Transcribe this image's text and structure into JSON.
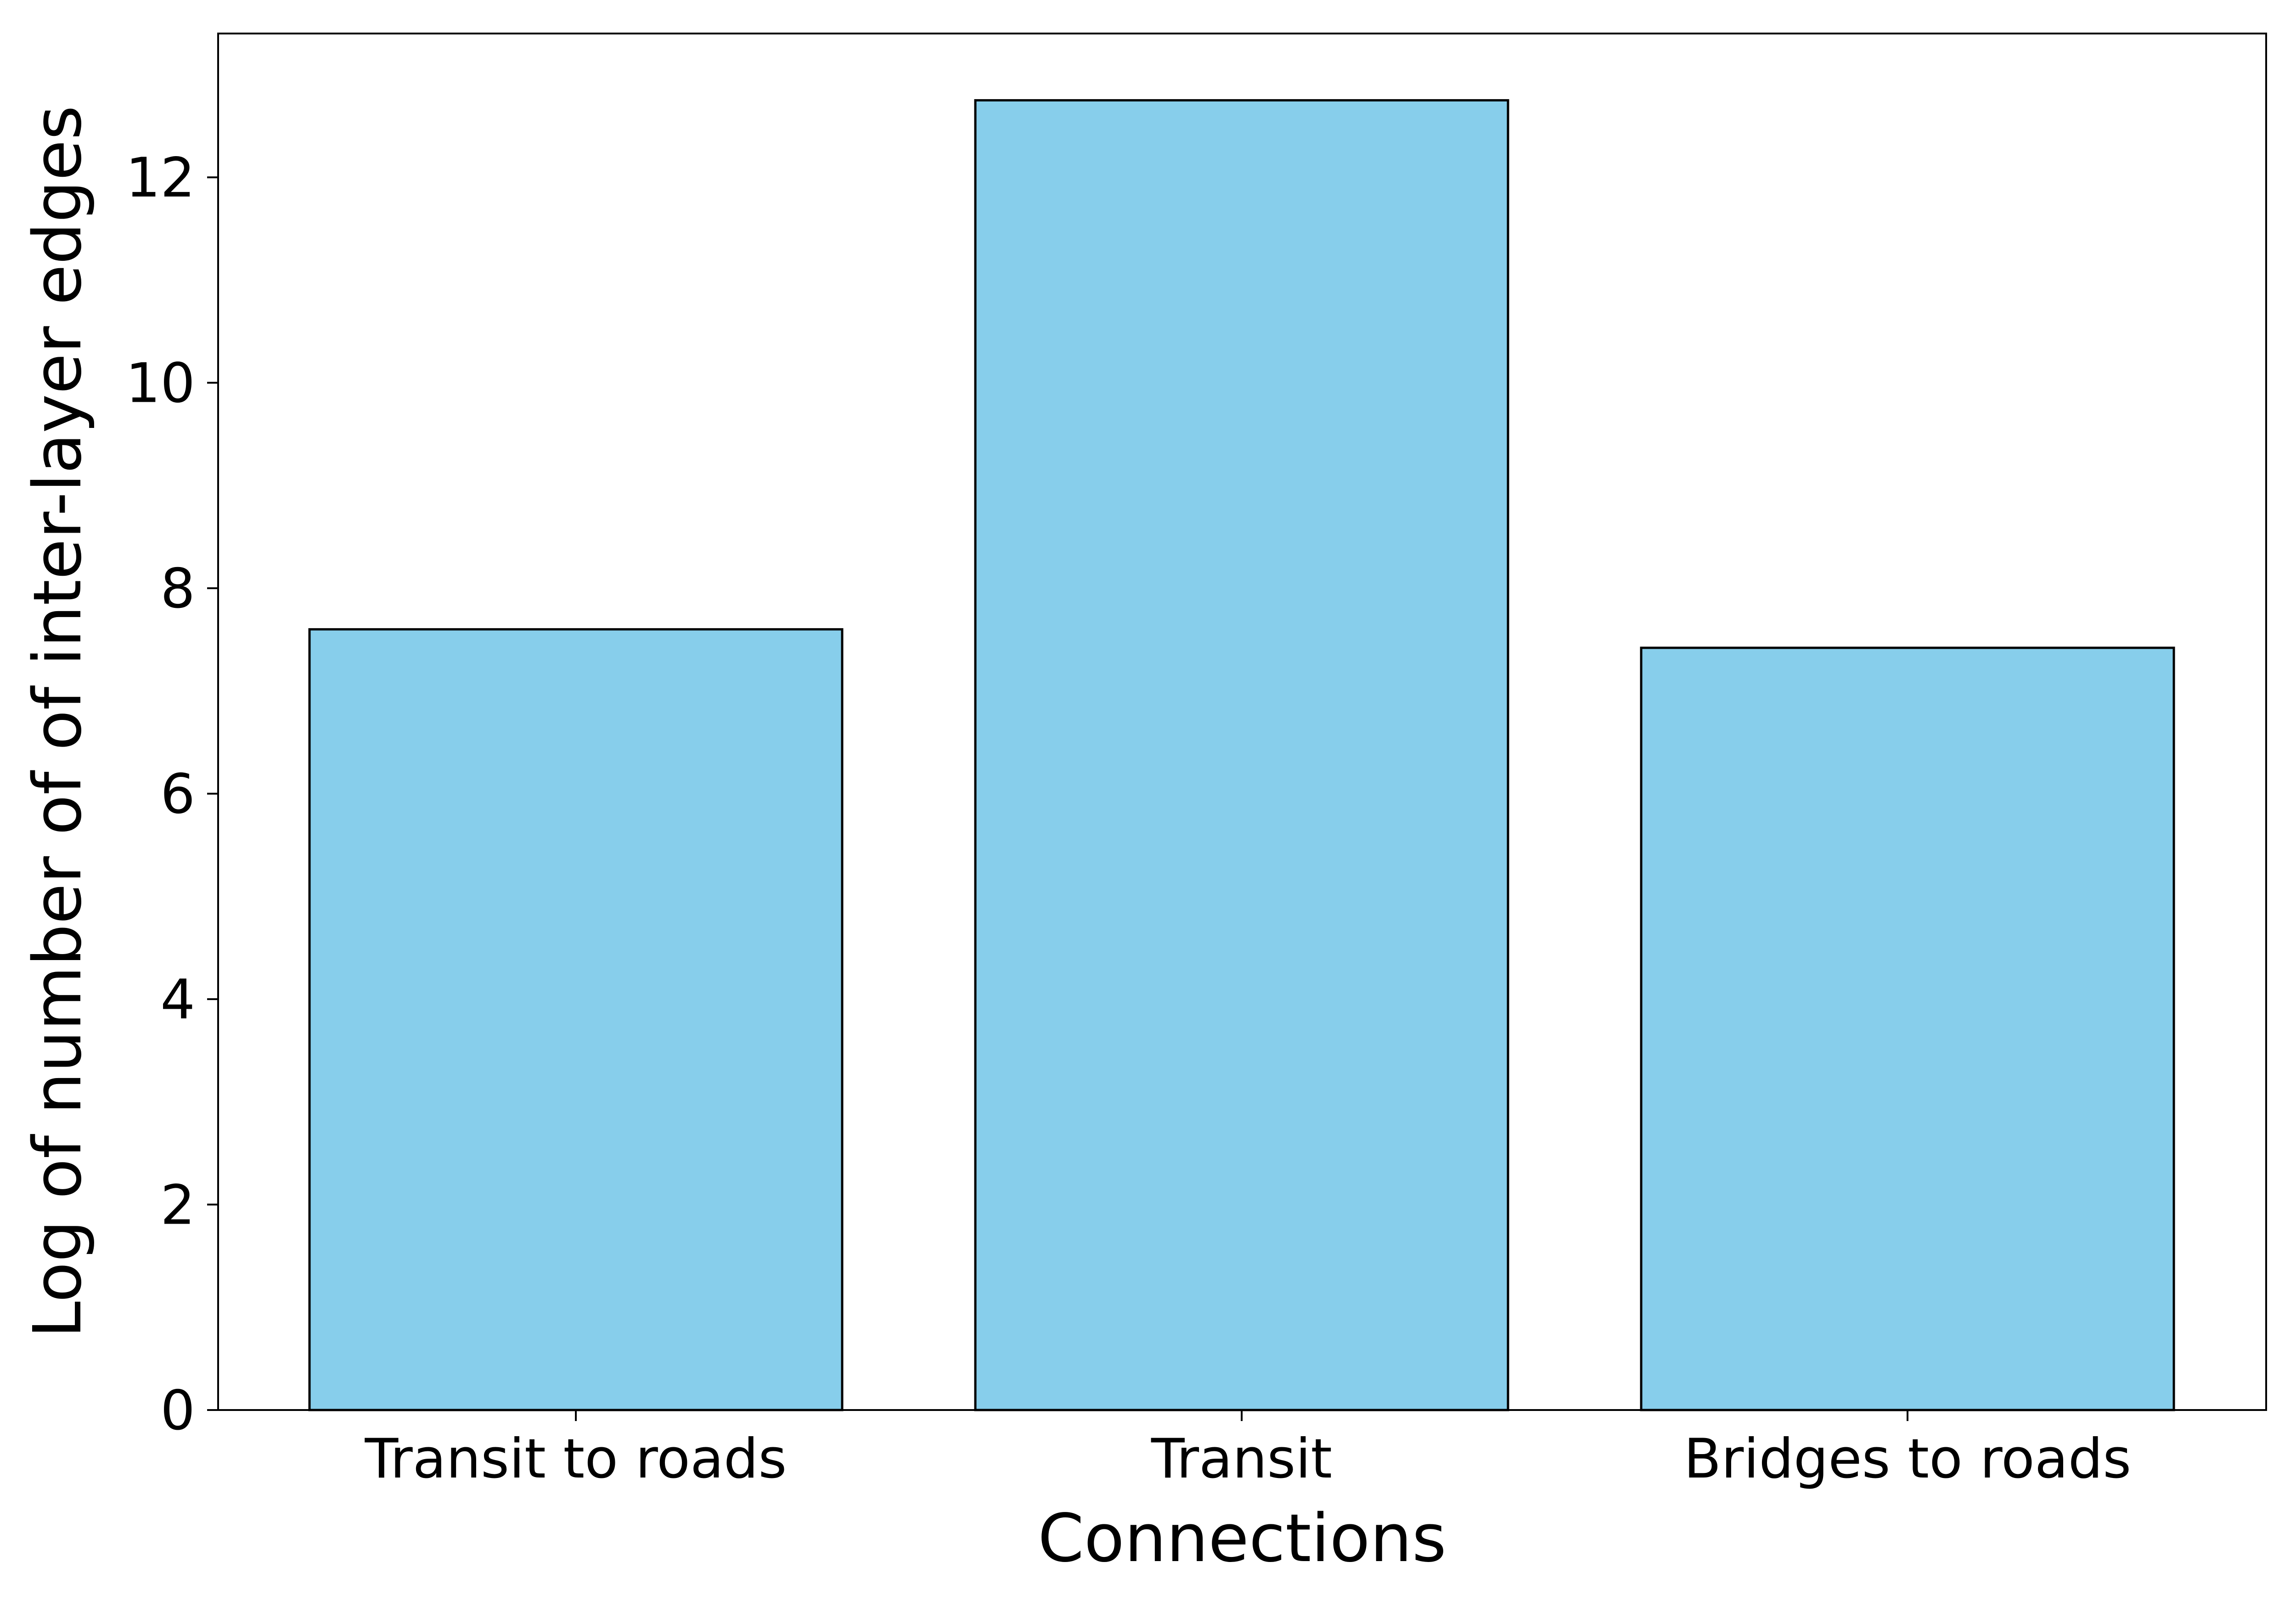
{
  "chart_data": {
    "type": "bar",
    "categories": [
      "Transit to roads",
      "Transit",
      "Bridges to roads"
    ],
    "values": [
      7.6,
      12.75,
      7.42
    ],
    "title": "",
    "xlabel": "Connections",
    "ylabel": "Log of number of of inter-layer edges",
    "ylim": [
      0,
      13.4
    ],
    "yticks": [
      0,
      2,
      4,
      6,
      8,
      10,
      12
    ],
    "bar_color": "#87CEEB",
    "edge_color": "#000000",
    "grid": false,
    "legend": "none"
  }
}
